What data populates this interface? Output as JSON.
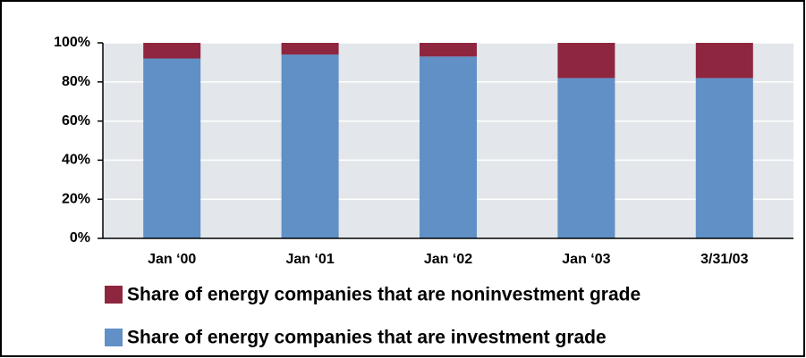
{
  "chart_data": {
    "type": "stacked_bar",
    "categories": [
      "Jan ‘00",
      "Jan ‘01",
      "Jan ‘02",
      "Jan ‘03",
      "3/31/03"
    ],
    "series": [
      {
        "name": "Share of energy companies that are investment grade",
        "color": "#6090c6",
        "values": [
          92,
          94,
          93,
          82,
          82
        ]
      },
      {
        "name": "Share of energy companies that are noninvestment grade",
        "color": "#8f2640",
        "values": [
          8,
          6,
          7,
          18,
          18
        ]
      }
    ],
    "ylim": [
      0,
      100
    ],
    "yticks": [
      {
        "value": 0,
        "label": "0%"
      },
      {
        "value": 20,
        "label": "20%"
      },
      {
        "value": 40,
        "label": "40%"
      },
      {
        "value": 60,
        "label": "60%"
      },
      {
        "value": 80,
        "label": "80%"
      },
      {
        "value": 100,
        "label": "100%"
      }
    ],
    "grid": true
  }
}
